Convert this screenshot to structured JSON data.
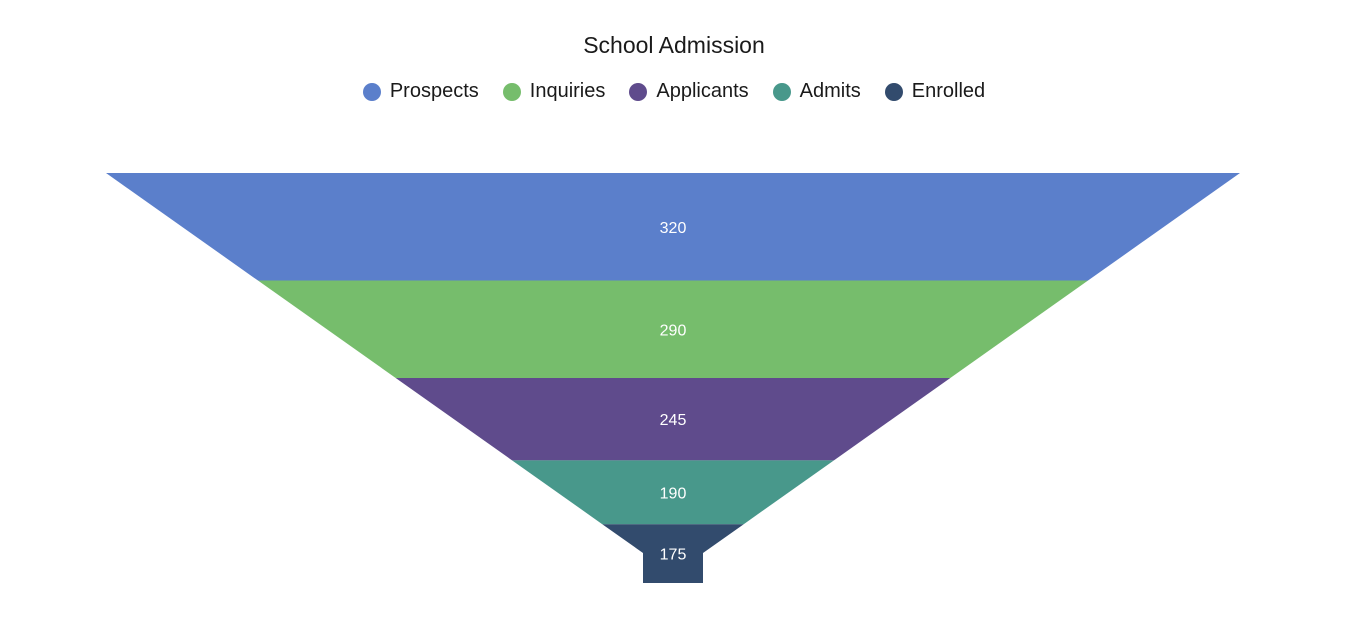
{
  "chart_data": {
    "type": "funnel",
    "title": "School Admission",
    "categories": [
      "Prospects",
      "Inquiries",
      "Applicants",
      "Admits",
      "Enrolled"
    ],
    "values": [
      320,
      290,
      245,
      190,
      175
    ],
    "colors": [
      "#5b7fcb",
      "#76bd6c",
      "#5f4b8c",
      "#48988b",
      "#324b6d"
    ],
    "legend_position": "top",
    "data_labels": [
      "320",
      "290",
      "245",
      "190",
      "175"
    ]
  }
}
